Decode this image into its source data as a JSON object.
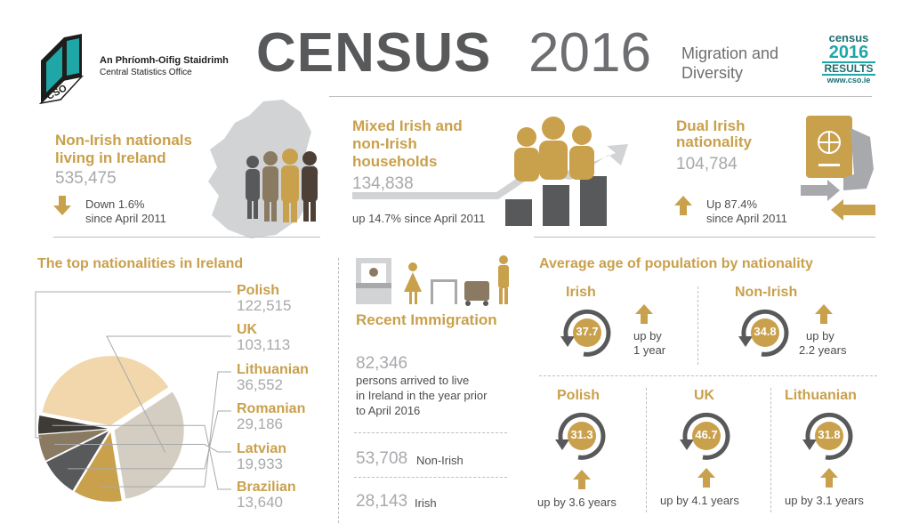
{
  "colors": {
    "gold": "#c9a04c",
    "grey": "#58595b",
    "light_grey": "#a7a9ac",
    "teal": "#1fa7a8"
  },
  "header": {
    "org_irish": "An Phríomh-Oifig Staidrimh",
    "org_english": "Central Statistics Office",
    "logo_text": "CSO",
    "title_bold": "CENSUS",
    "title_year": "2016",
    "subtitle_line1": "Migration and",
    "subtitle_line2": "Diversity",
    "badge": {
      "line1": "census",
      "line2": "2016",
      "line3": "RESULTS",
      "line4": "www.cso.ie"
    }
  },
  "top_stats": {
    "non_irish": {
      "title_line1": "Non-Irish nationals",
      "title_line2": "living in Ireland",
      "value": "535,475",
      "change_line1": "Down 1.6%",
      "change_line2": "since April 2011",
      "icon": "arrow-down-icon"
    },
    "mixed": {
      "title_line1": "Mixed Irish and",
      "title_line2": "non-Irish",
      "title_line3": "households",
      "value": "134,838",
      "change": "up 14.7% since April 2011"
    },
    "dual": {
      "title_line1": "Dual Irish",
      "title_line2": "nationality",
      "value": "104,784",
      "change_line1": "Up 87.4%",
      "change_line2": "since April 2011",
      "icon": "arrow-up-icon"
    }
  },
  "top_nationalities": {
    "heading": "The top nationalities in Ireland",
    "items": [
      {
        "name": "Polish",
        "value": "122,515"
      },
      {
        "name": "UK",
        "value": "103,113"
      },
      {
        "name": "Lithuanian",
        "value": "36,552"
      },
      {
        "name": "Romanian",
        "value": "29,186"
      },
      {
        "name": "Latvian",
        "value": "19,933"
      },
      {
        "name": "Brazilian",
        "value": "13,640"
      }
    ]
  },
  "chart_data": {
    "type": "pie",
    "categories": [
      "Polish",
      "UK",
      "Lithuanian",
      "Romanian",
      "Latvian",
      "Brazilian"
    ],
    "values": [
      122515,
      103113,
      36552,
      29186,
      19933,
      13640
    ],
    "colors": [
      "#f1d7ab",
      "#d3cdc2",
      "#c9a04c",
      "#58595b",
      "#8a7a62",
      "#3e3a36"
    ]
  },
  "recent": {
    "heading": "Recent Immigration",
    "value": "82,346",
    "desc_line1": "persons arrived to live",
    "desc_line2": "in Ireland in the year prior",
    "desc_line3": "to April 2016",
    "non_irish_value": "53,708",
    "non_irish_label": "Non-Irish",
    "irish_value": "28,143",
    "irish_label": "Irish"
  },
  "avg_age": {
    "heading": "Average age of population by nationality",
    "items": [
      {
        "name": "Irish",
        "age": "37.7",
        "change_line1": "up by",
        "change_line2": "1 year"
      },
      {
        "name": "Non-Irish",
        "age": "34.8",
        "change_line1": "up by",
        "change_line2": "2.2 years"
      },
      {
        "name": "Polish",
        "age": "31.3",
        "change": "up by 3.6 years"
      },
      {
        "name": "UK",
        "age": "46.7",
        "change": "up by 4.1 years"
      },
      {
        "name": "Lithuanian",
        "age": "31.8",
        "change": "up by 3.1 years"
      }
    ]
  }
}
